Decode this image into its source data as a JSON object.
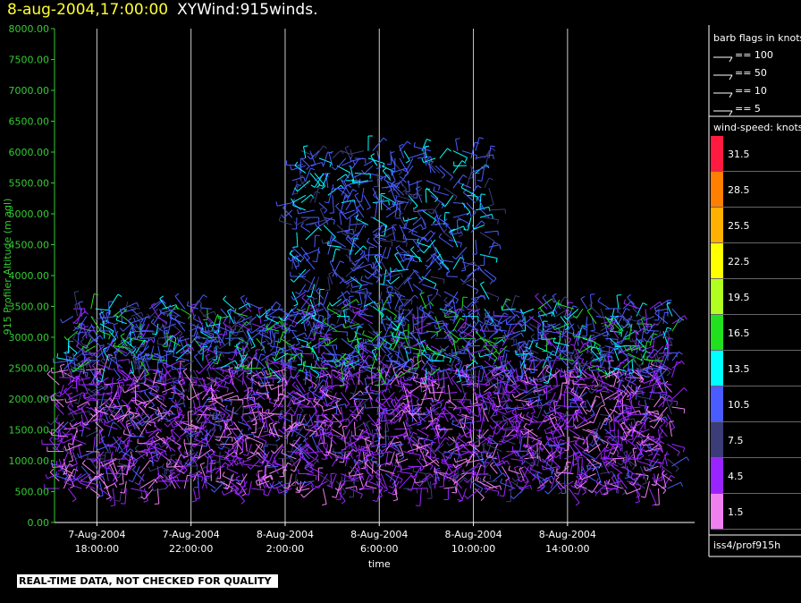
{
  "header": {
    "timestamp": "8-aug-2004,17:00:00",
    "product": "XYWind:915winds."
  },
  "footer_note": "REAL-TIME DATA, NOT CHECKED FOR QUALITY",
  "colors": {
    "yaxis": "#33cc33",
    "grid": "#cccccc",
    "axis": "#ffffff"
  },
  "chart_data": {
    "type": "wind-barb time-height",
    "ylabel": "915 Profiler Altitude (m agl)",
    "xlabel": "time",
    "ylim": [
      0,
      8000
    ],
    "yticks": [
      "0.00",
      "500.00",
      "1000.00",
      "1500.00",
      "2000.00",
      "2500.00",
      "3000.00",
      "3500.00",
      "4000.00",
      "4500.00",
      "5000.00",
      "5500.00",
      "6000.00",
      "6500.00",
      "7000.00",
      "7500.00",
      "8000.00"
    ],
    "xlim_hours": [
      -7.8,
      19.4
    ],
    "xticks": [
      {
        "hour": -6,
        "date": "7-Aug-2004",
        "time": "18:00:00"
      },
      {
        "hour": -2,
        "date": "7-Aug-2004",
        "time": "22:00:00"
      },
      {
        "hour": 2,
        "date": "8-Aug-2004",
        "time": "2:00:00"
      },
      {
        "hour": 6,
        "date": "8-Aug-2004",
        "time": "6:00:00"
      },
      {
        "hour": 10,
        "date": "8-Aug-2004",
        "time": "10:00:00"
      },
      {
        "hour": 14,
        "date": "8-Aug-2004",
        "time": "14:00:00"
      }
    ],
    "barb_legend": {
      "title": "barb flags in knots",
      "items": [
        "== 100",
        "== 50",
        "== 10",
        "== 5"
      ]
    },
    "speed_legend": {
      "title": "wind-speed: knots",
      "bins": [
        {
          "label": "31.5",
          "color": "#ff1a40"
        },
        {
          "label": "28.5",
          "color": "#ff8000"
        },
        {
          "label": "25.5",
          "color": "#ffb000"
        },
        {
          "label": "22.5",
          "color": "#ffff00"
        },
        {
          "label": "19.5",
          "color": "#b0ff20"
        },
        {
          "label": "16.5",
          "color": "#20e020"
        },
        {
          "label": "13.5",
          "color": "#00ffff"
        },
        {
          "label": "10.5",
          "color": "#4a5cff"
        },
        {
          "label": "7.5",
          "color": "#3c3c78"
        },
        {
          "label": "4.5",
          "color": "#9a24ff"
        },
        {
          "label": "1.5",
          "color": "#f080f0"
        }
      ]
    },
    "dataset": "iss4/prof915h",
    "clusters": [
      {
        "h0": -7.6,
        "h1": 18.6,
        "a0": 550,
        "a1": 2500,
        "colors": [
          9,
          9,
          10,
          9,
          8,
          7,
          9,
          10
        ]
      },
      {
        "h0": -7.2,
        "h1": 18.6,
        "a0": 2500,
        "a1": 3500,
        "colors": [
          7,
          8,
          9,
          7,
          6,
          5,
          7
        ]
      },
      {
        "h0": 2.3,
        "h1": 10.8,
        "a0": 3500,
        "a1": 6100,
        "colors": [
          7,
          7,
          8,
          6,
          7
        ]
      }
    ]
  }
}
